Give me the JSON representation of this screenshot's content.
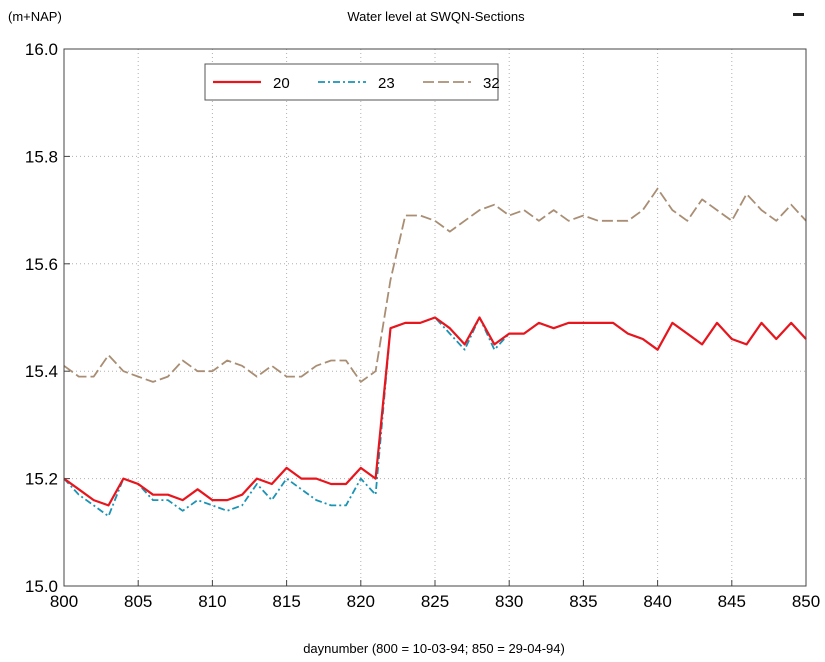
{
  "chart_data": {
    "type": "line",
    "title": "Water level at SWQN-Sections",
    "ylabel": "(m+NAP)",
    "xlabel": "daynumber (800 = 10-03-94; 850 = 29-04-94)",
    "xlim": [
      800,
      850
    ],
    "ylim": [
      15.0,
      16.0
    ],
    "xticks": [
      "800",
      "805",
      "810",
      "815",
      "820",
      "825",
      "830",
      "835",
      "840",
      "845",
      "850"
    ],
    "yticks": [
      "15.0",
      "15.2",
      "15.4",
      "15.6",
      "15.8",
      "16.0"
    ],
    "grid": true,
    "legend_position": "top-left",
    "x": [
      800,
      801,
      802,
      803,
      804,
      805,
      806,
      807,
      808,
      809,
      810,
      811,
      812,
      813,
      814,
      815,
      816,
      817,
      818,
      819,
      820,
      821,
      822,
      823,
      824,
      825,
      826,
      827,
      828,
      829,
      830,
      831,
      832,
      833,
      834,
      835,
      836,
      837,
      838,
      839,
      840,
      841,
      842,
      843,
      844,
      845,
      846,
      847,
      848,
      849,
      850
    ],
    "series": [
      {
        "name": "20",
        "color": "#e8151c",
        "style": "solid",
        "values": [
          15.2,
          15.18,
          15.16,
          15.15,
          15.2,
          15.19,
          15.17,
          15.17,
          15.16,
          15.18,
          15.16,
          15.16,
          15.17,
          15.2,
          15.19,
          15.22,
          15.2,
          15.2,
          15.19,
          15.19,
          15.22,
          15.2,
          15.48,
          15.49,
          15.49,
          15.5,
          15.48,
          15.45,
          15.5,
          15.45,
          15.47,
          15.47,
          15.49,
          15.48,
          15.49,
          15.49,
          15.49,
          15.49,
          15.47,
          15.46,
          15.44,
          15.49,
          15.47,
          15.45,
          15.49,
          15.46,
          15.45,
          15.49,
          15.46,
          15.49,
          15.46
        ]
      },
      {
        "name": "23",
        "color": "#1a93b5",
        "style": "dashdot",
        "values": [
          15.2,
          15.17,
          15.15,
          15.13,
          15.2,
          15.19,
          15.16,
          15.16,
          15.14,
          15.16,
          15.15,
          15.14,
          15.15,
          15.19,
          15.16,
          15.2,
          15.18,
          15.16,
          15.15,
          15.15,
          15.2,
          15.17,
          15.48,
          15.49,
          15.49,
          15.5,
          15.47,
          15.44,
          15.5,
          15.44,
          15.47,
          15.47,
          15.49,
          15.48,
          15.49,
          15.49,
          15.49,
          15.49,
          15.47,
          15.46,
          15.44,
          15.49,
          15.47,
          15.45,
          15.49,
          15.46,
          15.45,
          15.49,
          15.46,
          15.49,
          15.46
        ]
      },
      {
        "name": "32",
        "color": "#a98e74",
        "style": "dashed",
        "values": [
          15.41,
          15.39,
          15.39,
          15.43,
          15.4,
          15.39,
          15.38,
          15.39,
          15.42,
          15.4,
          15.4,
          15.42,
          15.41,
          15.39,
          15.41,
          15.39,
          15.39,
          15.41,
          15.42,
          15.42,
          15.38,
          15.4,
          15.57,
          15.69,
          15.69,
          15.68,
          15.66,
          15.68,
          15.7,
          15.71,
          15.69,
          15.7,
          15.68,
          15.7,
          15.68,
          15.69,
          15.68,
          15.68,
          15.68,
          15.7,
          15.74,
          15.7,
          15.68,
          15.72,
          15.7,
          15.68,
          15.73,
          15.7,
          15.68,
          15.71,
          15.68
        ]
      }
    ]
  }
}
